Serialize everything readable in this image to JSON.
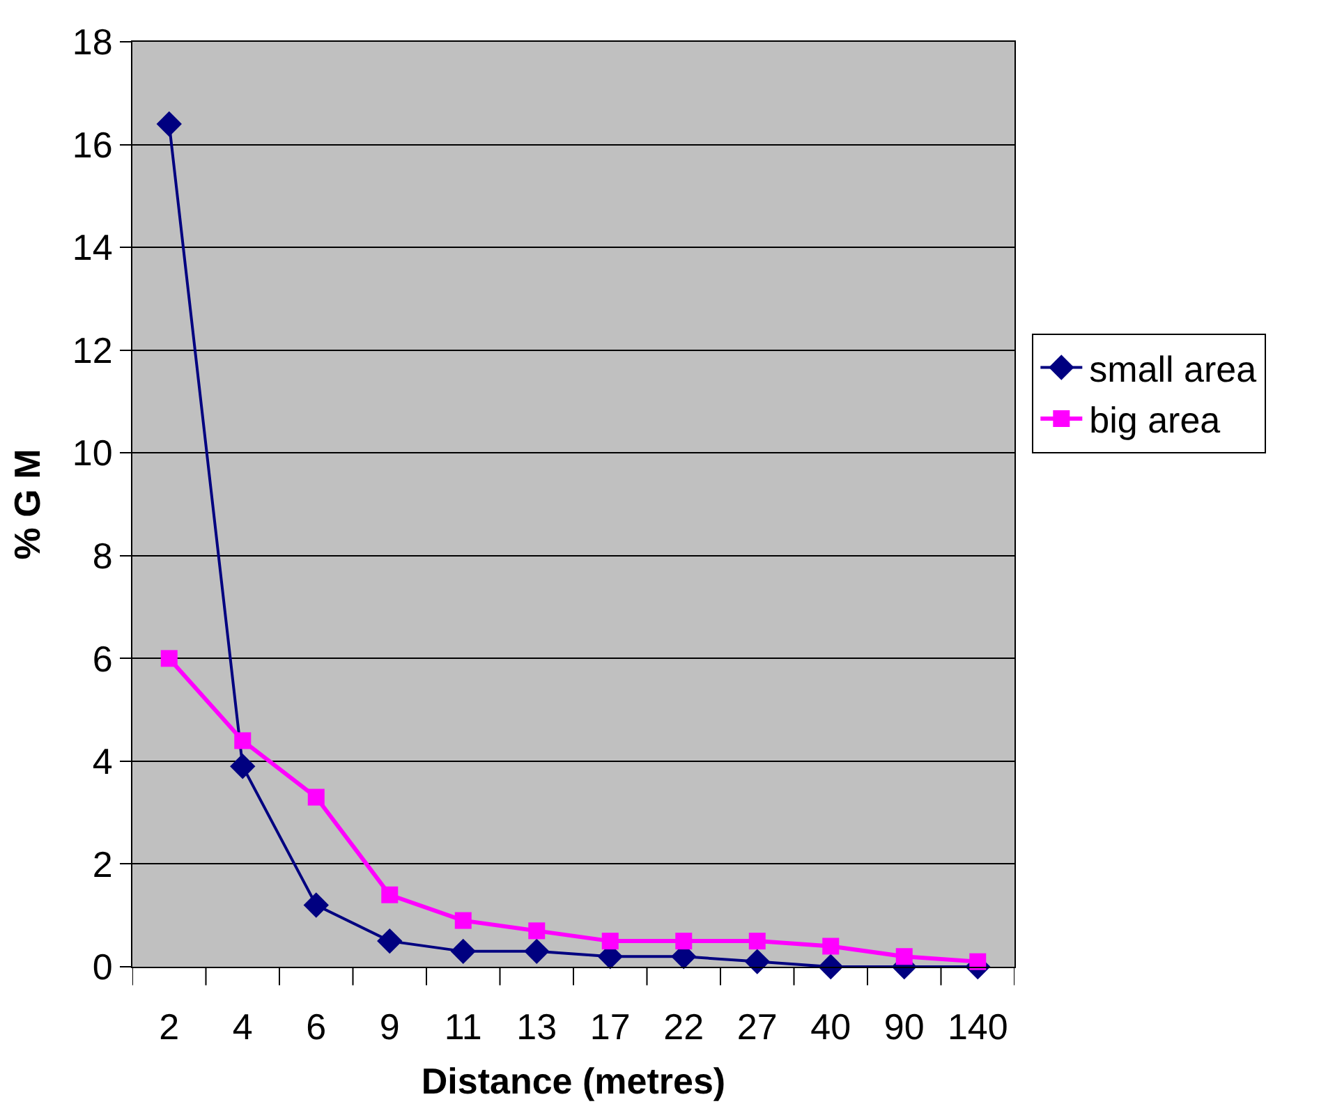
{
  "chart_data": {
    "type": "line",
    "xlabel": "Distance (metres)",
    "ylabel": "% G M",
    "categories": [
      "2",
      "4",
      "6",
      "9",
      "11",
      "13",
      "17",
      "22",
      "27",
      "40",
      "90",
      "140"
    ],
    "series": [
      {
        "name": "small area",
        "color": "#000080",
        "marker": "diamond",
        "values": [
          16.4,
          3.9,
          1.2,
          0.5,
          0.3,
          0.3,
          0.2,
          0.2,
          0.1,
          0,
          0,
          0
        ]
      },
      {
        "name": "big area",
        "color": "#ff00ff",
        "marker": "square",
        "values": [
          6.0,
          4.4,
          3.3,
          1.4,
          0.9,
          0.7,
          0.5,
          0.5,
          0.5,
          0.4,
          0.2,
          0.1
        ]
      }
    ],
    "ylim": [
      0,
      18
    ],
    "yticks": [
      0,
      2,
      4,
      6,
      8,
      10,
      12,
      14,
      16,
      18
    ],
    "grid": "y",
    "legend": "right",
    "line_style": "solid"
  }
}
